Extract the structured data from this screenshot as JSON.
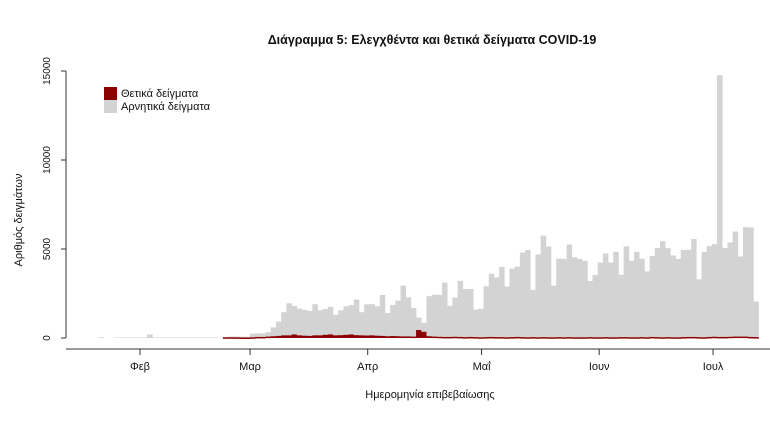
{
  "chart_data": {
    "type": "bar",
    "stacked": true,
    "title": "Διάγραμμα 5: Ελεγχθέντα και θετικά δείγματα COVID-19",
    "xlabel": "Ημερομηνία επιβεβαίωσης",
    "ylabel": "Αριθμός δειγμάτων",
    "ylim": [
      0,
      15000
    ],
    "yticks": [
      "0",
      "5000",
      "10000",
      "15000"
    ],
    "ytick_values": [
      0,
      5000,
      10000,
      15000
    ],
    "xticks": [
      {
        "label": "Φεβ",
        "date": "2020-02-01"
      },
      {
        "label": "Μαρ",
        "date": "2020-03-01"
      },
      {
        "label": "Απρ",
        "date": "2020-04-01"
      },
      {
        "label": "Μαΐ",
        "date": "2020-05-01"
      },
      {
        "label": "Ιουν",
        "date": "2020-06-01"
      },
      {
        "label": "Ιουλ",
        "date": "2020-07-01"
      }
    ],
    "legend": {
      "position": "top-left",
      "items": [
        {
          "label": "Θετικά δείγματα",
          "color": "#8b0000"
        },
        {
          "label": "Αρνητικά δείγματα",
          "color": "#d3d3d3"
        }
      ]
    },
    "series_colors": {
      "positive": "#8b0000",
      "negative": "#d3d3d3"
    },
    "segments": [
      {
        "start": "2020-01-21",
        "end": "2020-03-01",
        "negative": [
          40,
          0,
          0,
          30,
          30,
          30,
          30,
          30,
          30,
          200,
          30,
          30,
          30,
          30,
          30,
          30,
          30,
          30,
          30,
          30,
          30,
          30,
          20,
          20,
          40,
          40,
          40,
          40
        ],
        "positive": [
          0,
          0,
          0,
          0,
          0,
          0,
          0,
          0,
          0,
          0,
          0,
          0,
          0,
          0,
          0,
          0,
          0,
          0,
          0,
          0,
          0,
          0,
          0,
          40,
          40,
          40,
          30,
          30
        ]
      },
      {
        "start": "2020-03-01",
        "end": "2020-07-13",
        "negative": [
          200,
          200,
          200,
          250,
          500,
          800,
          1300,
          1800,
          1600,
          1500,
          1450,
          1400,
          1750,
          1400,
          1450,
          1550,
          1150,
          1400,
          1600,
          1650,
          2000,
          1300,
          1750,
          1750,
          1650,
          2300,
          1300,
          1750,
          2000,
          2850,
          2200,
          1600,
          700,
          500,
          2250,
          2350,
          2350,
          3050,
          1750,
          2200,
          3150,
          2700,
          2700,
          1550,
          1600,
          2850,
          3550,
          3350,
          3950,
          2850,
          3850,
          3950,
          4750,
          4900,
          2650,
          4650,
          5700,
          5100,
          2900,
          4400,
          4400,
          5200,
          4500,
          4400,
          4300,
          3150,
          3500,
          4200,
          4700,
          4200,
          4800,
          3500,
          5100,
          4300,
          4800,
          4400,
          3700,
          4550,
          5000,
          5400,
          5000,
          4600,
          4400,
          4900,
          4900,
          5500,
          3250,
          4800,
          5100,
          5200,
          14700,
          5000,
          5300,
          5900,
          4500,
          6150,
          6150,
          2000
        ],
        "positive": [
          40,
          60,
          60,
          80,
          100,
          120,
          150,
          150,
          200,
          150,
          130,
          120,
          150,
          150,
          180,
          200,
          150,
          160,
          180,
          200,
          160,
          150,
          140,
          150,
          130,
          120,
          100,
          110,
          100,
          90,
          90,
          80,
          450,
          350,
          100,
          80,
          70,
          60,
          60,
          70,
          60,
          50,
          60,
          50,
          40,
          50,
          60,
          50,
          50,
          40,
          50,
          60,
          50,
          40,
          50,
          40,
          50,
          40,
          40,
          50,
          40,
          50,
          40,
          40,
          40,
          50,
          40,
          40,
          50,
          40,
          40,
          50,
          50,
          40,
          40,
          50,
          40,
          60,
          50,
          40,
          50,
          40,
          40,
          50,
          60,
          60,
          50,
          40,
          60,
          70,
          60,
          60,
          70,
          80,
          80,
          80,
          60,
          50
        ]
      }
    ]
  }
}
